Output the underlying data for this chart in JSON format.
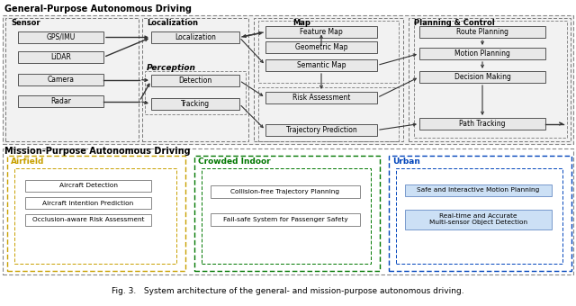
{
  "title_top": "General-Purpose Autonomous Driving",
  "title_bottom": "Mission-Purpose Autonomous Driving",
  "caption": "Fig. 3.   System architecture of the general- and mission-purpose autonomous driving.",
  "airfield_label": "Airfield",
  "airfield_color": "#c8a000",
  "airfield_boxes": [
    "Aircraft Detection",
    "Aircraft Intention Prediction",
    "Occlusion-aware Risk Assessment"
  ],
  "crowded_label": "Crowded Indoor",
  "crowded_color": "#007700",
  "crowded_boxes": [
    "Collision-free Trajectory Planning",
    "Fail-safe System for Passenger Safety"
  ],
  "urban_label": "Urban",
  "urban_color": "#0044bb",
  "urban_boxes": [
    "Safe and Interactive Motion Planning",
    "Real-time and Accurate\nMulti-sensor Object Detection"
  ],
  "sensor_boxes": [
    "GPS/IMU",
    "LiDAR",
    "Camera",
    "Radar"
  ],
  "map_boxes": [
    "Feature Map",
    "Geometric Map",
    "Semantic Map"
  ],
  "planning_boxes": [
    "Route Planning",
    "Motion Planning",
    "Decision Making",
    "Path Tracking"
  ]
}
